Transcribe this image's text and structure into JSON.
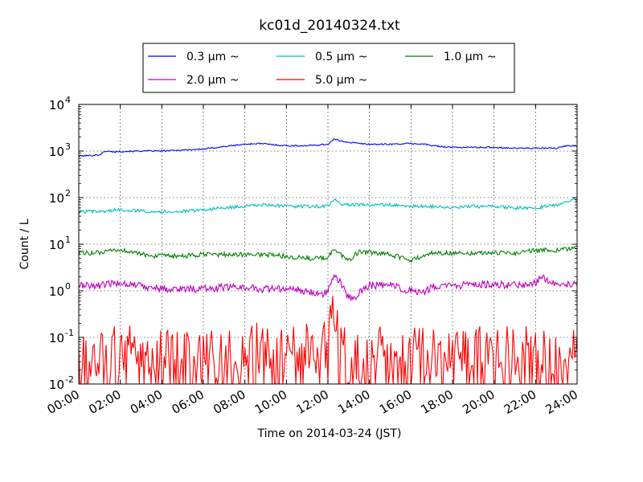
{
  "chart_data": {
    "type": "line",
    "title": "kc01d_20140324.txt",
    "xlabel": "Time on 2014-03-24 (JST)",
    "ylabel": "Count / L",
    "xlim": [
      0,
      24
    ],
    "ylim": [
      0.01,
      10000
    ],
    "yscale": "log",
    "grid": true,
    "legend_position": "top-center",
    "x_ticks": [
      {
        "v": 0,
        "label": "00:00"
      },
      {
        "v": 2,
        "label": "02:00"
      },
      {
        "v": 4,
        "label": "04:00"
      },
      {
        "v": 6,
        "label": "06:00"
      },
      {
        "v": 8,
        "label": "08:00"
      },
      {
        "v": 10,
        "label": "10:00"
      },
      {
        "v": 12,
        "label": "12:00"
      },
      {
        "v": 14,
        "label": "14:00"
      },
      {
        "v": 16,
        "label": "16:00"
      },
      {
        "v": 18,
        "label": "18:00"
      },
      {
        "v": 20,
        "label": "20:00"
      },
      {
        "v": 22,
        "label": "22:00"
      },
      {
        "v": 24,
        "label": "24:00"
      }
    ],
    "y_ticks": [
      {
        "v": 0.01,
        "base": "10",
        "exp": "-2"
      },
      {
        "v": 0.1,
        "base": "10",
        "exp": "-1"
      },
      {
        "v": 1,
        "base": "10",
        "exp": "0"
      },
      {
        "v": 10,
        "base": "10",
        "exp": "1"
      },
      {
        "v": 100,
        "base": "10",
        "exp": "2"
      },
      {
        "v": 1000,
        "base": "10",
        "exp": "3"
      },
      {
        "v": 10000,
        "base": "10",
        "exp": "4"
      }
    ],
    "series": [
      {
        "name": "0.3 μm ~",
        "color": "#0000ff",
        "x": [
          0,
          0.5,
          1,
          1.3,
          1.6,
          2,
          3,
          4,
          5,
          6,
          7,
          8,
          8.7,
          9.5,
          10,
          11,
          11.5,
          12,
          12.3,
          12.6,
          13,
          13.5,
          14,
          15,
          16,
          16.7,
          17,
          18,
          19,
          20,
          21,
          22,
          23,
          23.5,
          24
        ],
        "values": [
          780,
          800,
          830,
          1000,
          960,
          980,
          1000,
          1000,
          1050,
          1100,
          1250,
          1400,
          1450,
          1350,
          1300,
          1300,
          1350,
          1400,
          1800,
          1650,
          1550,
          1450,
          1400,
          1400,
          1450,
          1400,
          1300,
          1200,
          1200,
          1200,
          1150,
          1150,
          1150,
          1300,
          1300
        ]
      },
      {
        "name": "0.5 μm ~",
        "color": "#00bfbf",
        "x": [
          0,
          1,
          2,
          3,
          4,
          5,
          6,
          7,
          8,
          9,
          10,
          11,
          12,
          12.3,
          12.6,
          13,
          14,
          15,
          16,
          17,
          18,
          19,
          20,
          21,
          22,
          23,
          23.5,
          24
        ],
        "values": [
          50,
          50,
          55,
          52,
          50,
          50,
          55,
          60,
          65,
          70,
          65,
          65,
          65,
          90,
          75,
          70,
          70,
          70,
          65,
          65,
          60,
          65,
          65,
          60,
          60,
          70,
          85,
          90
        ]
      },
      {
        "name": "1.0 μm ~",
        "color": "#008000",
        "x": [
          0,
          1,
          2,
          2.5,
          3,
          4,
          5,
          6,
          7,
          8,
          9,
          10,
          11,
          12,
          12.3,
          12.6,
          13,
          13.5,
          14,
          15,
          16,
          17,
          18,
          19,
          20,
          21,
          22,
          23,
          24
        ],
        "values": [
          6.5,
          6.5,
          7.5,
          7,
          6,
          5.5,
          5.5,
          6,
          6,
          6,
          6,
          5.5,
          5,
          5,
          8.5,
          6,
          4.5,
          7,
          6.5,
          6,
          4.5,
          6.5,
          6.5,
          6.5,
          6.5,
          6.5,
          7.5,
          7.5,
          8
        ]
      },
      {
        "name": "2.0 μm ~",
        "color": "#bf00bf",
        "x": [
          0,
          1,
          2,
          3,
          4,
          5,
          6,
          7,
          8,
          9,
          10,
          11,
          11.7,
          12,
          12.3,
          12.6,
          13,
          13.3,
          14,
          15,
          16,
          16.5,
          17,
          18,
          19,
          20,
          21,
          22,
          22.3,
          23,
          24
        ],
        "values": [
          1.3,
          1.3,
          1.5,
          1.3,
          1.1,
          1.1,
          1.1,
          1.2,
          1.2,
          1.1,
          1.1,
          1.0,
          0.85,
          1.0,
          2.1,
          1.5,
          0.7,
          0.75,
          1.3,
          1.3,
          1.0,
          0.85,
          1.2,
          1.3,
          1.3,
          1.4,
          1.3,
          1.5,
          2.0,
          1.4,
          1.4
        ]
      },
      {
        "name": "5.0 μm ~",
        "color": "#ff0000",
        "x": [
          0,
          1,
          2,
          3,
          4,
          5,
          6,
          7,
          8,
          9,
          10,
          11,
          11.5,
          12,
          12.2,
          12.4,
          12.6,
          13,
          14,
          15,
          16,
          17,
          18,
          19,
          20,
          21,
          22,
          23,
          24
        ],
        "values": [
          0.03,
          0.05,
          0.05,
          0.06,
          0.04,
          0.05,
          0.04,
          0.05,
          0.06,
          0.06,
          0.06,
          0.06,
          0.05,
          0.08,
          0.25,
          0.4,
          0.15,
          0.03,
          0.05,
          0.05,
          0.05,
          0.05,
          0.05,
          0.05,
          0.05,
          0.05,
          0.05,
          0.04,
          0.05
        ]
      }
    ]
  }
}
